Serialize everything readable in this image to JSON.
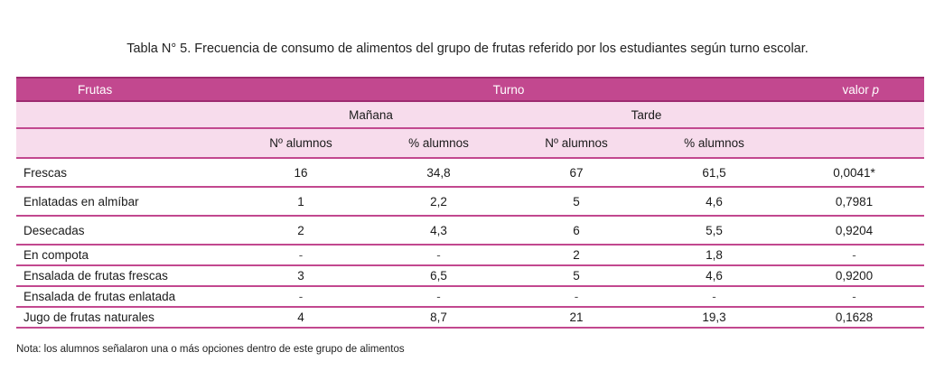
{
  "caption": "Tabla N° 5. Frecuencia de consumo de alimentos del grupo de frutas referido por los estudiantes según turno escolar.",
  "header": {
    "frutas": "Frutas",
    "turno": "Turno",
    "valor_label": "valor ",
    "valor_p": "p",
    "manana": "Mañana",
    "tarde": "Tarde",
    "n_alumnos_m": "Nº alumnos",
    "pct_alumnos_m": "% alumnos",
    "n_alumnos_t": "Nº alumnos",
    "pct_alumnos_t": "% alumnos"
  },
  "rows": [
    {
      "label": "Frescas",
      "m_n": "16",
      "m_pct": "34,8",
      "t_n": "67",
      "t_pct": "61,5",
      "p": "0,0041*"
    },
    {
      "label": "Enlatadas en almíbar",
      "m_n": "1",
      "m_pct": "2,2",
      "t_n": "5",
      "t_pct": "4,6",
      "p": "0,7981"
    },
    {
      "label": "Desecadas",
      "m_n": "2",
      "m_pct": "4,3",
      "t_n": "6",
      "t_pct": "5,5",
      "p": "0,9204"
    },
    {
      "label": "En compota",
      "m_n": "-",
      "m_pct": "-",
      "t_n": "2",
      "t_pct": "1,8",
      "p": "-"
    },
    {
      "label": "Ensalada de frutas frescas",
      "m_n": "3",
      "m_pct": "6,5",
      "t_n": "5",
      "t_pct": "4,6",
      "p": "0,9200"
    },
    {
      "label": "Ensalada de frutas enlatada",
      "m_n": "-",
      "m_pct": "-",
      "t_n": "-",
      "t_pct": "-",
      "p": "-"
    },
    {
      "label": "Jugo de frutas naturales",
      "m_n": "4",
      "m_pct": "8,7",
      "t_n": "21",
      "t_pct": "19,3",
      "p": "0,1628"
    }
  ],
  "note": "Nota: los alumnos señalaron una o más opciones dentro de este grupo de alimentos",
  "colors": {
    "header_bg": "#c2488f",
    "subheader_bg": "#f7dcec",
    "rule": "#c2488f"
  }
}
